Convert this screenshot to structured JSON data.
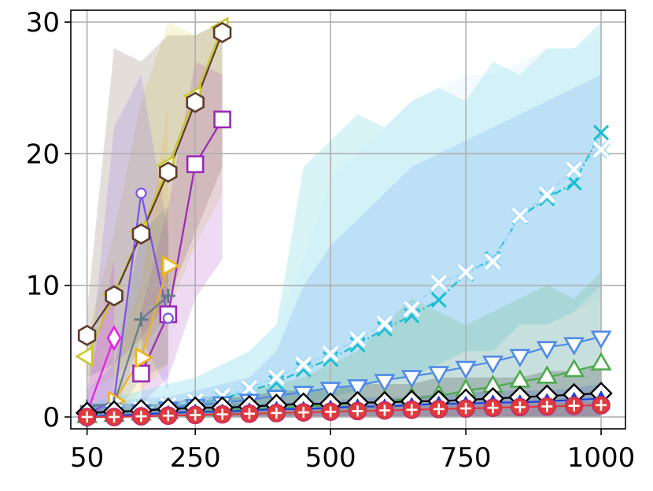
{
  "chart_data": {
    "type": "line",
    "title": "",
    "xlabel": "",
    "ylabel": "",
    "xlim": [
      20,
      1045
    ],
    "ylim": [
      -0.9,
      30.9
    ],
    "grid": true,
    "legend": "none",
    "xticks": [
      50,
      250,
      500,
      750,
      1000
    ],
    "xtick_labels": [
      "50",
      "250",
      "500",
      "750",
      "1000"
    ],
    "yticks": [
      0,
      10,
      20,
      30
    ],
    "ytick_labels": [
      "0",
      "10",
      "20",
      "30"
    ],
    "series": [
      {
        "color": "#c8c829",
        "marker": "triangle-left",
        "x": [
          50,
          100,
          150,
          200,
          250,
          300
        ],
        "y": [
          4.6,
          9.3,
          14.1,
          19.1,
          24.4,
          29.6
        ],
        "band_low": [
          2,
          3,
          5,
          8,
          13,
          17
        ],
        "band_high": [
          6,
          14,
          24,
          30,
          29,
          30
        ]
      },
      {
        "color": "#5d3a2a",
        "marker": "hexagon",
        "x": [
          50,
          100,
          150,
          200,
          250,
          300
        ],
        "y": [
          6.2,
          9.2,
          13.9,
          18.6,
          23.9,
          29.2
        ],
        "band_low": [
          3,
          4,
          6,
          9,
          14,
          19
        ],
        "band_high": [
          8,
          28,
          27,
          29,
          29,
          30
        ]
      },
      {
        "color": "#9b29b6",
        "marker": "square",
        "x": [
          150,
          200,
          250,
          300
        ],
        "y": [
          3.3,
          7.8,
          19.2,
          22.6
        ],
        "band_low": [
          1,
          3,
          9,
          12
        ],
        "band_high": [
          8,
          16,
          27,
          26
        ]
      },
      {
        "color": "#7b52e8",
        "marker": "circle-small",
        "x": [
          50,
          100,
          150,
          200
        ],
        "y": [
          0.2,
          1.3,
          17.0,
          7.5
        ],
        "band_low": [
          0,
          0,
          6,
          2
        ],
        "band_high": [
          2,
          22,
          26,
          14
        ]
      },
      {
        "color": "#e81fe8",
        "marker": "diamond",
        "x": [
          50,
          100
        ],
        "y": [
          0.3,
          6.0
        ],
        "band_low": [
          0,
          1
        ],
        "band_high": [
          2,
          12
        ]
      },
      {
        "color": "#f0b41a",
        "marker": "triangle-right",
        "x": [
          100,
          150,
          200
        ],
        "y": [
          1.2,
          4.5,
          11.5
        ],
        "band_low": [
          0,
          2,
          4
        ],
        "band_high": [
          4,
          10,
          24
        ]
      },
      {
        "color": "#5f7d8c",
        "marker": "plus",
        "x": [
          50,
          100,
          150,
          200
        ],
        "y": [
          0.8,
          1.0,
          7.4,
          9.2
        ],
        "band_low": [
          0,
          0,
          3,
          4
        ],
        "band_high": [
          2,
          4,
          14,
          16
        ]
      },
      {
        "color": "#17becf",
        "marker": "x",
        "x": [
          50,
          100,
          150,
          200,
          250,
          300,
          350,
          400,
          450,
          500,
          550,
          600,
          650,
          700,
          750,
          800,
          850,
          900,
          950,
          1000
        ],
        "y": [
          0.1,
          0.3,
          0.5,
          0.7,
          1.0,
          1.4,
          2.0,
          2.6,
          3.6,
          4.4,
          5.5,
          6.7,
          7.7,
          8.9,
          10.9,
          12.0,
          15.2,
          16.6,
          17.8,
          21.6
        ],
        "band_low": [
          0,
          0,
          0,
          0,
          0,
          0,
          0.5,
          1,
          1,
          1.5,
          2,
          3,
          3,
          4,
          5,
          5,
          7,
          7,
          8,
          10
        ],
        "band_high": [
          1,
          1.5,
          2,
          2.5,
          3,
          4,
          5,
          7,
          19,
          21,
          23,
          22,
          24,
          25,
          24,
          27,
          26,
          28,
          28,
          30
        ]
      },
      {
        "color": "#dff3ff",
        "marker": "x-white",
        "x": [
          50,
          100,
          150,
          200,
          250,
          300,
          350,
          400,
          450,
          500,
          550,
          600,
          650,
          700,
          750,
          800,
          850,
          900,
          950,
          1000
        ],
        "y": [
          0.1,
          0.4,
          0.6,
          0.9,
          1.2,
          1.6,
          2.2,
          3.0,
          4.0,
          4.8,
          5.9,
          7.1,
          8.2,
          10.2,
          11.0,
          11.8,
          15.3,
          16.9,
          18.8,
          20.3
        ],
        "band_low": [
          0,
          0,
          0,
          0,
          0,
          0.5,
          0.5,
          1,
          1,
          1.5,
          2,
          3,
          3,
          4,
          5,
          5,
          7,
          7,
          8,
          9
        ],
        "band_high": [
          1,
          1.5,
          2,
          2.5,
          3,
          4,
          5,
          7,
          12,
          18,
          20,
          22,
          24,
          25,
          26,
          26,
          27,
          28,
          28,
          29
        ]
      },
      {
        "color": "#4e8ae8",
        "marker": "triangle-down",
        "x": [
          50,
          100,
          150,
          200,
          250,
          300,
          350,
          400,
          450,
          500,
          550,
          600,
          650,
          700,
          750,
          800,
          850,
          900,
          950,
          1000
        ],
        "y": [
          0.0,
          0.3,
          0.5,
          0.7,
          0.9,
          1.1,
          1.3,
          1.6,
          1.9,
          2.2,
          2.4,
          2.8,
          3.1,
          3.4,
          3.8,
          4.2,
          4.7,
          5.3,
          5.6,
          6.1
        ],
        "band_low": [
          0,
          0,
          0,
          0,
          0,
          0,
          0,
          0,
          0,
          0,
          0,
          0,
          0,
          0,
          0,
          0,
          0,
          0,
          0,
          0
        ],
        "band_high": [
          1,
          1,
          1.5,
          1.5,
          2,
          2.5,
          3,
          5,
          10,
          13,
          15,
          17,
          19,
          20,
          21,
          22,
          23,
          24,
          25,
          26
        ]
      },
      {
        "color": "#4caa4c",
        "marker": "triangle-up",
        "x": [
          50,
          100,
          150,
          200,
          250,
          300,
          350,
          400,
          450,
          500,
          550,
          600,
          650,
          700,
          750,
          800,
          850,
          900,
          950,
          1000
        ],
        "y": [
          0.0,
          0.1,
          0.2,
          0.3,
          0.4,
          0.5,
          0.6,
          0.7,
          0.8,
          0.9,
          1.0,
          1.2,
          1.4,
          1.6,
          2.0,
          2.3,
          2.7,
          3.0,
          3.5,
          4.0
        ],
        "band_low": [
          0,
          0,
          0,
          0,
          0,
          0,
          0,
          0,
          0,
          0,
          0,
          0,
          0,
          0,
          0,
          0,
          0,
          0,
          0,
          0
        ],
        "band_high": [
          0.5,
          0.5,
          0.8,
          1,
          1,
          1.5,
          2,
          2.5,
          3,
          4,
          5,
          7,
          9,
          8,
          7,
          8,
          9,
          10,
          9,
          11
        ]
      },
      {
        "color": "#000000",
        "marker": "diamond-open",
        "x": [
          50,
          100,
          150,
          200,
          250,
          300,
          350,
          400,
          450,
          500,
          550,
          600,
          650,
          700,
          750,
          800,
          850,
          900,
          950,
          1000
        ],
        "y": [
          0.3,
          0.4,
          0.5,
          0.6,
          0.7,
          0.7,
          0.8,
          0.9,
          1.0,
          1.0,
          1.1,
          1.1,
          1.2,
          1.2,
          1.3,
          1.4,
          1.5,
          1.6,
          1.7,
          1.8
        ],
        "band_low": [
          0,
          0,
          0,
          0,
          0,
          0,
          0,
          0,
          0,
          0,
          0,
          0,
          0,
          0,
          0,
          0,
          0,
          0,
          0,
          0
        ],
        "band_high": [
          1,
          1,
          1,
          1,
          1.5,
          1.5,
          1.5,
          2,
          2,
          2,
          2.5,
          2.5,
          2.5,
          3,
          3,
          3,
          3,
          3.5,
          3.5,
          4
        ]
      },
      {
        "color": "#2040d8",
        "marker": "triangle-up-small",
        "x": [
          50,
          100,
          150,
          200,
          250,
          300,
          350,
          400,
          450,
          500,
          550,
          600,
          650,
          700,
          750,
          800,
          850,
          900,
          950,
          1000
        ],
        "y": [
          0.0,
          0.1,
          0.2,
          0.3,
          0.4,
          0.4,
          0.5,
          0.6,
          0.6,
          0.7,
          0.8,
          0.8,
          0.9,
          1.0,
          1.0,
          1.1,
          1.1,
          1.2,
          1.3,
          1.4
        ],
        "band_low": [
          0,
          0,
          0,
          0,
          0,
          0,
          0,
          0,
          0,
          0,
          0,
          0,
          0,
          0,
          0,
          0,
          0,
          0,
          0,
          0
        ],
        "band_high": [
          0.5,
          0.5,
          0.5,
          0.8,
          0.8,
          1,
          1,
          1,
          1.2,
          1.2,
          1.5,
          1.5,
          1.5,
          1.8,
          1.8,
          2,
          2,
          2,
          2.2,
          2.5
        ]
      },
      {
        "color": "#e03a3a",
        "marker": "circle-plus",
        "x": [
          50,
          100,
          150,
          200,
          250,
          300,
          350,
          400,
          450,
          500,
          550,
          600,
          650,
          700,
          750,
          800,
          850,
          900,
          950,
          1000
        ],
        "y": [
          0.0,
          0.0,
          0.05,
          0.1,
          0.15,
          0.2,
          0.25,
          0.3,
          0.35,
          0.4,
          0.45,
          0.5,
          0.55,
          0.6,
          0.65,
          0.7,
          0.75,
          0.8,
          0.85,
          0.9
        ],
        "band_low": [
          0,
          0,
          0,
          0,
          0,
          0,
          0,
          0,
          0,
          0,
          0,
          0,
          0,
          0,
          0,
          0,
          0,
          0,
          0,
          0
        ],
        "band_high": [
          0.3,
          0.3,
          0.3,
          0.4,
          0.4,
          0.5,
          0.5,
          0.6,
          0.6,
          0.7,
          0.7,
          0.8,
          0.8,
          0.9,
          0.9,
          1,
          1,
          1.1,
          1.1,
          1.2
        ]
      }
    ]
  }
}
